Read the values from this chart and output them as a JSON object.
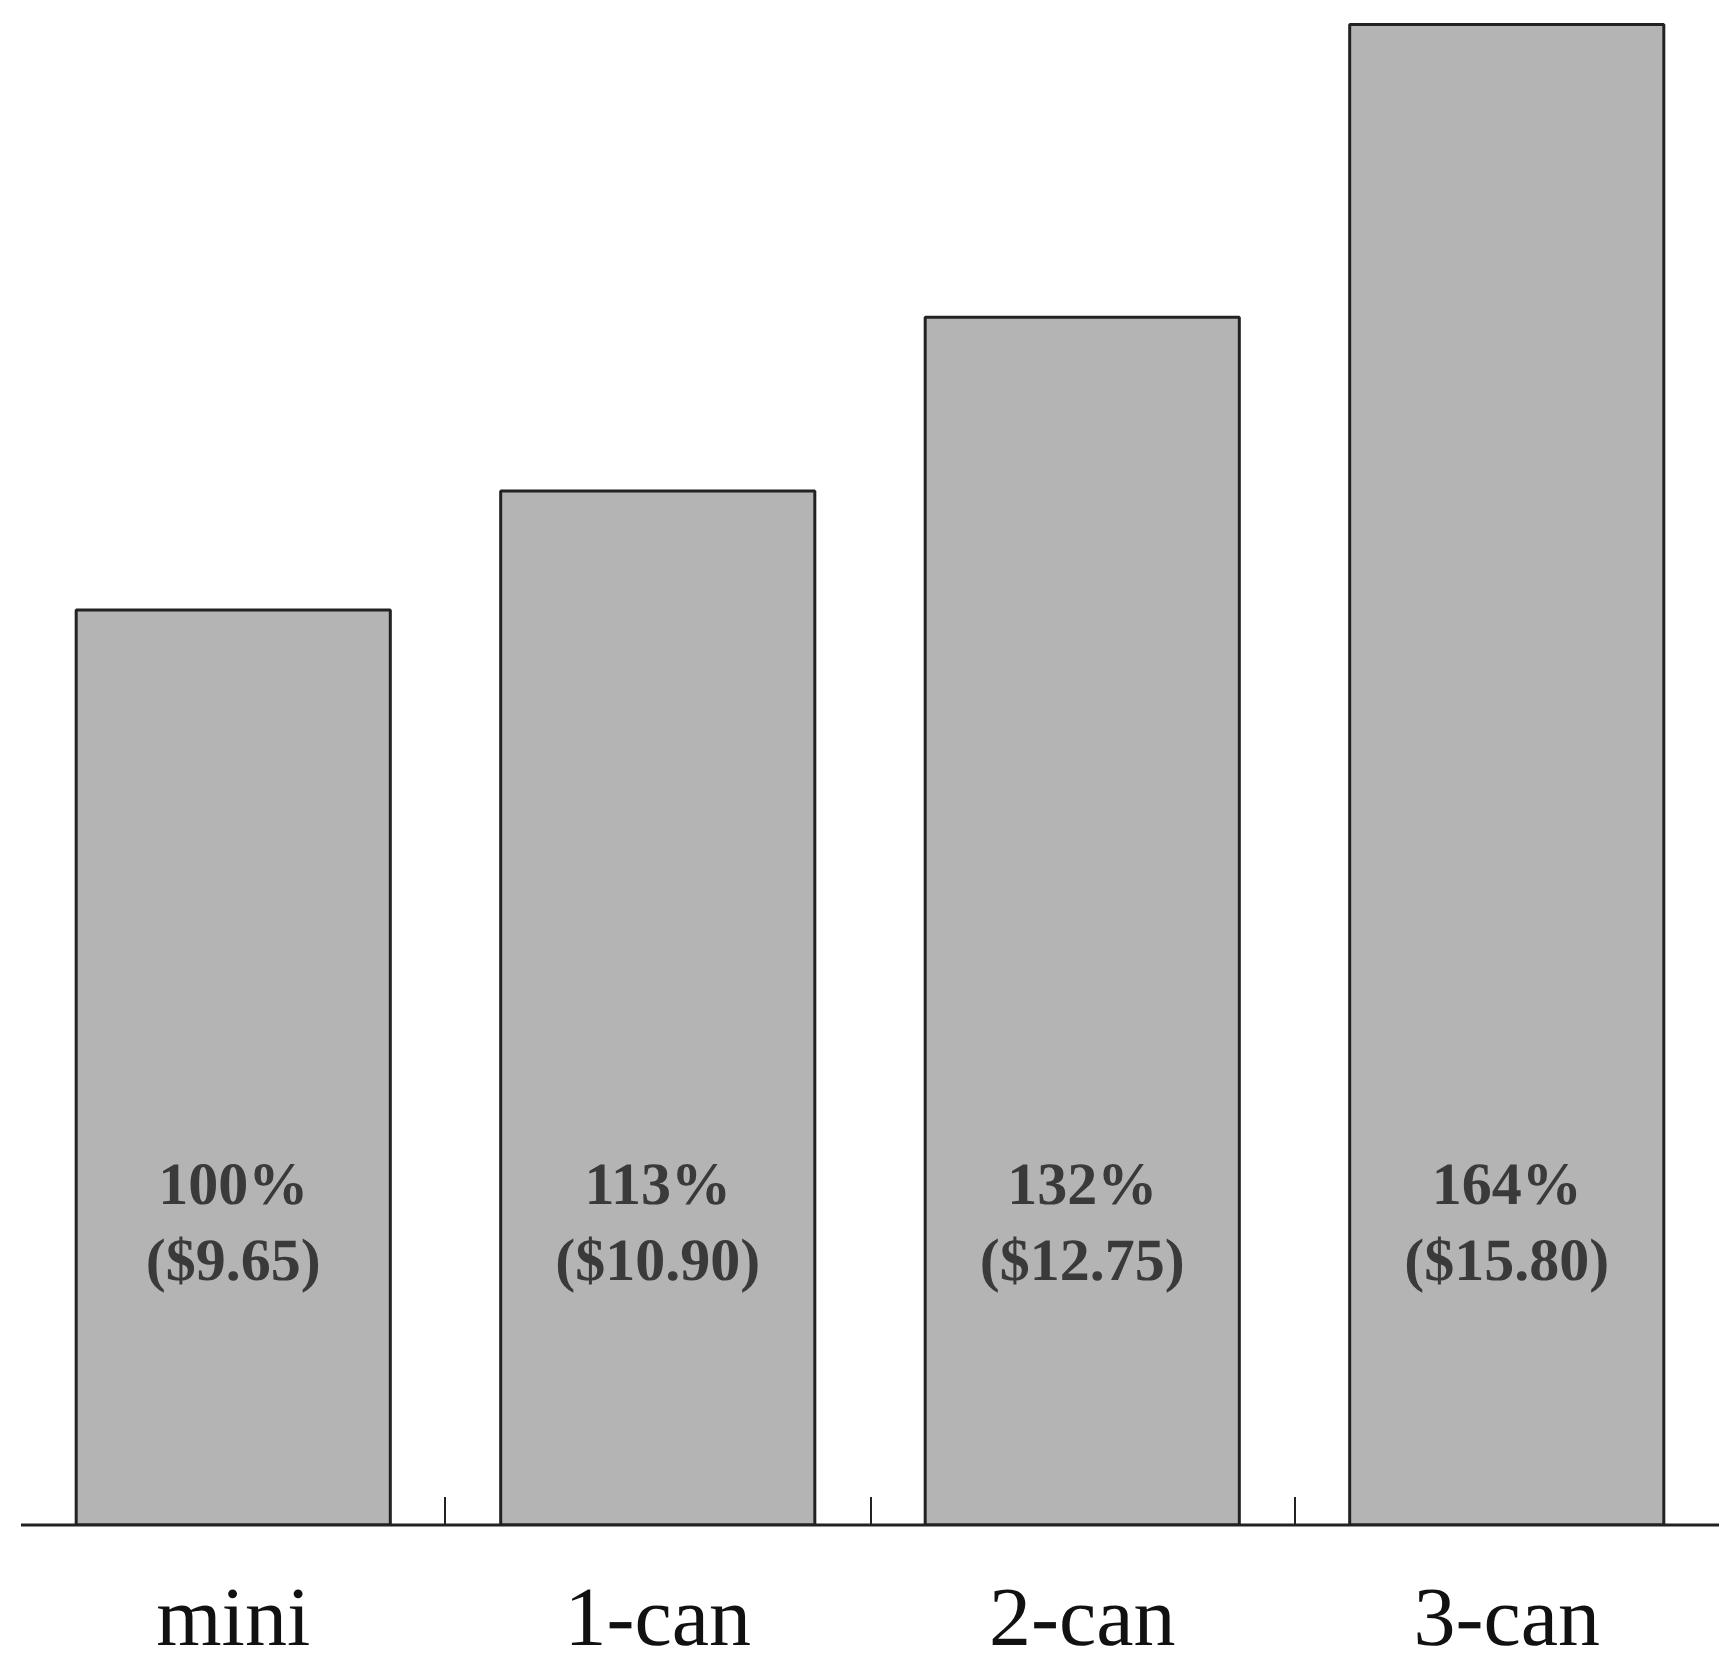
{
  "chart_data": {
    "type": "bar",
    "categories": [
      "mini",
      "1-can",
      "2-can",
      "3-can"
    ],
    "values": [
      100,
      113,
      132,
      164
    ],
    "color": "#b4b4b4",
    "value_labels": [
      "100%\n($9.65)",
      "113%\n($10.90)",
      "132%\n($12.75)",
      "164%\n($15.80)"
    ],
    "tick_labels": "x"
  }
}
